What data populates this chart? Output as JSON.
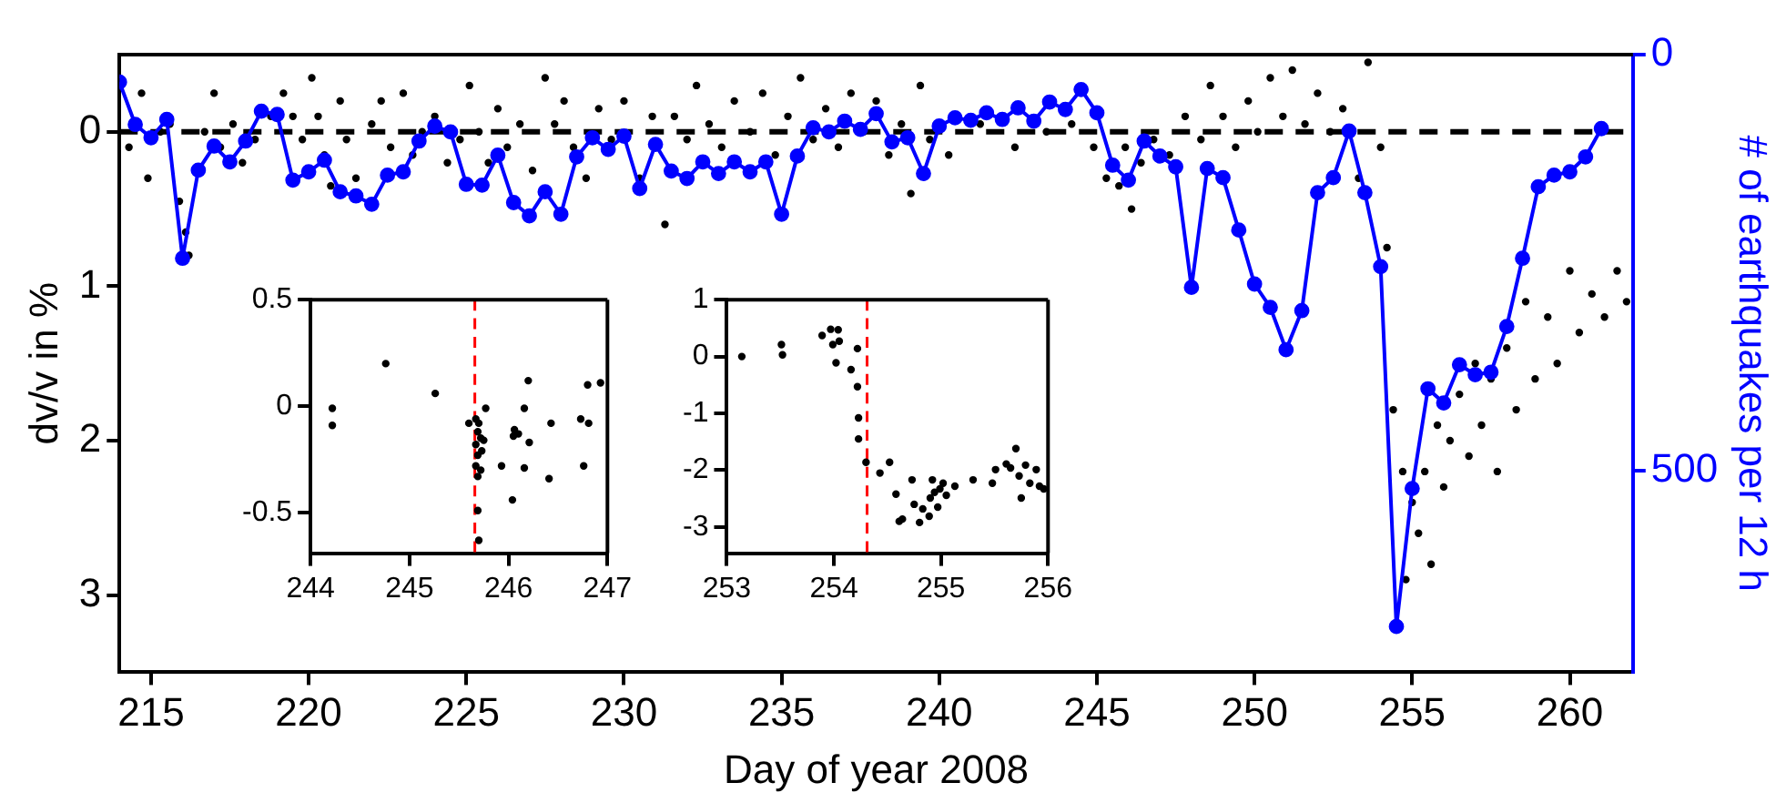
{
  "chart_data": [
    {
      "type": "scatter",
      "xlabel": "Day of year 2008",
      "ylabel": "dv/v in %",
      "y2label": "# of earthquakes per 12 h",
      "xlim": [
        214,
        262
      ],
      "xticks": [
        215,
        220,
        225,
        230,
        235,
        240,
        245,
        250,
        255,
        260
      ],
      "ylim": [
        3.5,
        -0.5
      ],
      "yticks": [
        0,
        1,
        2,
        3
      ],
      "y2lim": [
        743,
        0
      ],
      "y2ticks": [
        0,
        500
      ],
      "grid": false,
      "legend": false,
      "marker": "circle",
      "ref_lines": [
        {
          "axis": "y",
          "value": 0,
          "color": "#000000",
          "line_style": "dashed"
        }
      ],
      "series": [
        {
          "color": "#000000",
          "x": [
            214.3,
            214.7,
            214.9,
            215.3,
            215.6,
            215.9,
            216.1,
            216.2,
            216.7,
            217.0,
            217.2,
            217.6,
            217.9,
            218.3,
            218.8,
            219.2,
            219.5,
            219.8,
            220.1,
            220.3,
            220.5,
            220.7,
            221.0,
            221.2,
            221.5,
            222.0,
            222.3,
            222.6,
            223.0,
            223.3,
            223.6,
            224.0,
            224.4,
            224.8,
            225.1,
            225.4,
            225.7,
            226.0,
            226.3,
            226.7,
            227.1,
            227.5,
            227.8,
            228.1,
            228.4,
            228.8,
            229.2,
            229.6,
            230.0,
            230.5,
            230.9,
            231.3,
            231.6,
            232.0,
            232.3,
            232.7,
            233.1,
            233.5,
            234.0,
            234.4,
            234.8,
            235.2,
            235.6,
            236.0,
            236.4,
            236.8,
            237.2,
            237.6,
            238.0,
            238.4,
            238.8,
            239.1,
            239.4,
            239.7,
            240.3,
            241.3,
            242.4,
            243.4,
            244.2,
            244.9,
            245.3,
            245.7,
            245.9,
            246.1,
            246.4,
            246.8,
            247.3,
            247.8,
            248.3,
            248.6,
            249.0,
            249.4,
            249.8,
            250.1,
            250.5,
            250.9,
            251.2,
            251.6,
            252.0,
            252.4,
            252.8,
            253.3,
            253.6,
            254.0,
            254.2,
            254.4,
            254.7,
            254.8,
            255.0,
            255.2,
            255.4,
            255.6,
            255.8,
            256.0,
            256.2,
            256.5,
            256.8,
            257.0,
            257.2,
            257.5,
            257.7,
            258.0,
            258.3,
            258.6,
            258.9,
            259.3,
            259.6,
            260.0,
            260.3,
            260.7,
            261.1,
            261.5,
            261.8
          ],
          "values": [
            0.1,
            -0.25,
            0.3,
            0.0,
            -0.05,
            0.45,
            0.65,
            0.8,
            0.0,
            -0.25,
            0.1,
            -0.05,
            0.2,
            0.05,
            -0.1,
            -0.25,
            -0.1,
            0.05,
            -0.35,
            -0.1,
            0.15,
            0.35,
            -0.2,
            0.05,
            0.3,
            -0.05,
            -0.2,
            0.1,
            -0.25,
            0.15,
            0.0,
            -0.1,
            0.2,
            0.05,
            -0.3,
            0.0,
            0.2,
            -0.15,
            0.1,
            -0.05,
            0.25,
            -0.35,
            -0.05,
            -0.2,
            0.1,
            0.3,
            -0.15,
            0.05,
            -0.2,
            0.3,
            -0.1,
            0.6,
            -0.1,
            0.05,
            -0.3,
            -0.05,
            0.1,
            -0.2,
            0.0,
            -0.25,
            0.15,
            -0.1,
            -0.35,
            0.05,
            -0.15,
            0.1,
            -0.25,
            0.0,
            -0.2,
            0.15,
            -0.05,
            0.4,
            -0.3,
            0.05,
            0.15,
            -0.05,
            0.1,
            0.0,
            -0.05,
            0.1,
            0.3,
            0.35,
            0.1,
            0.5,
            0.2,
            0.05,
            0.15,
            -0.1,
            0.05,
            -0.3,
            -0.1,
            0.1,
            -0.2,
            0.0,
            -0.35,
            -0.1,
            -0.4,
            -0.05,
            -0.25,
            0.0,
            -0.15,
            0.3,
            -0.45,
            0.1,
            0.75,
            1.8,
            2.2,
            2.9,
            2.4,
            2.6,
            2.2,
            2.8,
            1.9,
            2.3,
            2.0,
            1.7,
            2.1,
            1.5,
            1.9,
            1.6,
            2.2,
            1.4,
            1.8,
            1.1,
            1.6,
            1.2,
            1.5,
            0.9,
            1.3,
            1.05,
            1.2,
            0.9,
            1.1
          ]
        },
        {
          "type": "line",
          "axis": "y2",
          "color": "#0000ff",
          "x": [
            214.0,
            214.5,
            215.0,
            215.5,
            216.0,
            216.5,
            217.0,
            217.5,
            218.0,
            218.5,
            219.0,
            219.5,
            220.0,
            220.5,
            221.0,
            221.5,
            222.0,
            222.5,
            223.0,
            223.5,
            224.0,
            224.5,
            225.0,
            225.5,
            226.0,
            226.5,
            227.0,
            227.5,
            228.0,
            228.5,
            229.0,
            229.5,
            230.0,
            230.5,
            231.0,
            231.5,
            232.0,
            232.5,
            233.0,
            233.5,
            234.0,
            234.5,
            235.0,
            235.5,
            236.0,
            236.5,
            237.0,
            237.5,
            238.0,
            238.5,
            239.0,
            239.5,
            240.0,
            240.5,
            241.0,
            241.5,
            242.0,
            242.5,
            243.0,
            243.5,
            244.0,
            244.5,
            245.0,
            245.5,
            246.0,
            246.5,
            247.0,
            247.5,
            248.0,
            248.5,
            249.0,
            249.5,
            250.0,
            250.5,
            251.0,
            251.5,
            252.0,
            252.5,
            253.0,
            253.5,
            254.0,
            254.5,
            255.0,
            255.5,
            256.0,
            256.5,
            257.0,
            257.5,
            258.0,
            258.5,
            259.0,
            259.5,
            260.0,
            260.5,
            261.0
          ],
          "values": [
            33,
            84,
            100,
            78,
            245,
            139,
            110,
            129,
            104,
            68,
            72,
            151,
            141,
            127,
            165,
            170,
            180,
            145,
            141,
            104,
            86,
            93,
            156,
            157,
            121,
            178,
            194,
            165,
            192,
            123,
            100,
            114,
            98,
            161,
            108,
            140,
            149,
            129,
            143,
            129,
            141,
            129,
            192,
            122,
            88,
            93,
            80,
            90,
            71,
            105,
            100,
            143,
            86,
            76,
            79,
            70,
            78,
            64,
            80,
            57,
            66,
            42,
            70,
            133,
            151,
            104,
            122,
            135,
            280,
            137,
            148,
            211,
            276,
            304,
            355,
            308,
            166,
            148,
            92,
            166,
            255,
            688,
            522,
            402,
            419,
            373,
            385,
            382,
            327,
            245,
            159,
            145,
            141,
            123,
            89
          ]
        }
      ]
    },
    {
      "type": "scatter",
      "xlim": [
        244,
        247
      ],
      "xticks": [
        244,
        245,
        246,
        247
      ],
      "ylim": [
        -0.69,
        0.5
      ],
      "yticks": [
        -0.5,
        0,
        0.5
      ],
      "grid": false,
      "legend": false,
      "marker": "circle",
      "ref_lines": [
        {
          "axis": "x",
          "value": 245.66,
          "color": "#ff0000",
          "line_style": "dashed"
        }
      ],
      "series": [
        {
          "color": "#000000",
          "x": [
            244.22,
            244.22,
            244.76,
            245.26,
            245.6,
            245.67,
            245.7,
            245.77,
            245.69,
            245.72,
            245.75,
            245.67,
            245.73,
            245.69,
            245.67,
            245.72,
            245.69,
            245.69,
            245.7,
            245.93,
            246.04,
            246.05,
            246.06,
            246.1,
            246.16,
            246.16,
            246.2,
            246.21,
            246.43,
            246.41,
            246.73,
            246.76,
            246.8,
            246.81,
            246.93
          ],
          "values": [
            -0.01,
            -0.09,
            0.2,
            0.06,
            -0.08,
            -0.06,
            -0.08,
            -0.01,
            -0.12,
            -0.15,
            -0.16,
            -0.18,
            -0.21,
            -0.23,
            -0.28,
            -0.3,
            -0.33,
            -0.49,
            -0.63,
            -0.28,
            -0.44,
            -0.14,
            -0.11,
            -0.13,
            -0.01,
            -0.29,
            0.12,
            -0.17,
            -0.08,
            -0.34,
            -0.06,
            -0.28,
            0.1,
            -0.08,
            0.11
          ]
        }
      ]
    },
    {
      "type": "scatter",
      "xlim": [
        253,
        256
      ],
      "xticks": [
        253,
        254,
        255,
        256
      ],
      "ylim": [
        -3.46,
        1
      ],
      "yticks": [
        -3,
        -2,
        -1,
        0,
        1
      ],
      "grid": false,
      "legend": false,
      "marker": "circle",
      "ref_lines": [
        {
          "axis": "x",
          "value": 254.31,
          "color": "#ff0000",
          "line_style": "dashed"
        }
      ],
      "series": [
        {
          "color": "#000000",
          "x": [
            253.14,
            253.51,
            253.52,
            253.89,
            253.97,
            254.04,
            253.99,
            254.05,
            254.02,
            254.16,
            254.22,
            254.22,
            254.23,
            254.23,
            254.3,
            254.43,
            254.52,
            254.58,
            254.61,
            254.64,
            254.73,
            254.75,
            254.8,
            254.83,
            254.89,
            254.9,
            254.92,
            254.94,
            254.97,
            254.99,
            255.02,
            255.05,
            255.13,
            255.3,
            255.48,
            255.51,
            255.61,
            255.65,
            255.7,
            255.73,
            255.75,
            255.79,
            255.83,
            255.89,
            255.92,
            255.96
          ],
          "values": [
            0,
            0.21,
            0.03,
            0.37,
            0.48,
            0.47,
            0.21,
            0.27,
            -0.11,
            -0.23,
            0.14,
            -0.53,
            -1.08,
            -1.45,
            -1.86,
            -2.05,
            -1.86,
            -2.42,
            -2.9,
            -2.86,
            -2.17,
            -2.6,
            -2.92,
            -2.68,
            -2.81,
            -2.49,
            -2.17,
            -2.39,
            -2.65,
            -2.33,
            -2.23,
            -2.44,
            -2.28,
            -2.17,
            -2.23,
            -1.99,
            -1.89,
            -1.96,
            -1.62,
            -2.1,
            -2.49,
            -1.91,
            -2.23,
            -1.99,
            -2.28,
            -2.33
          ]
        }
      ]
    }
  ]
}
